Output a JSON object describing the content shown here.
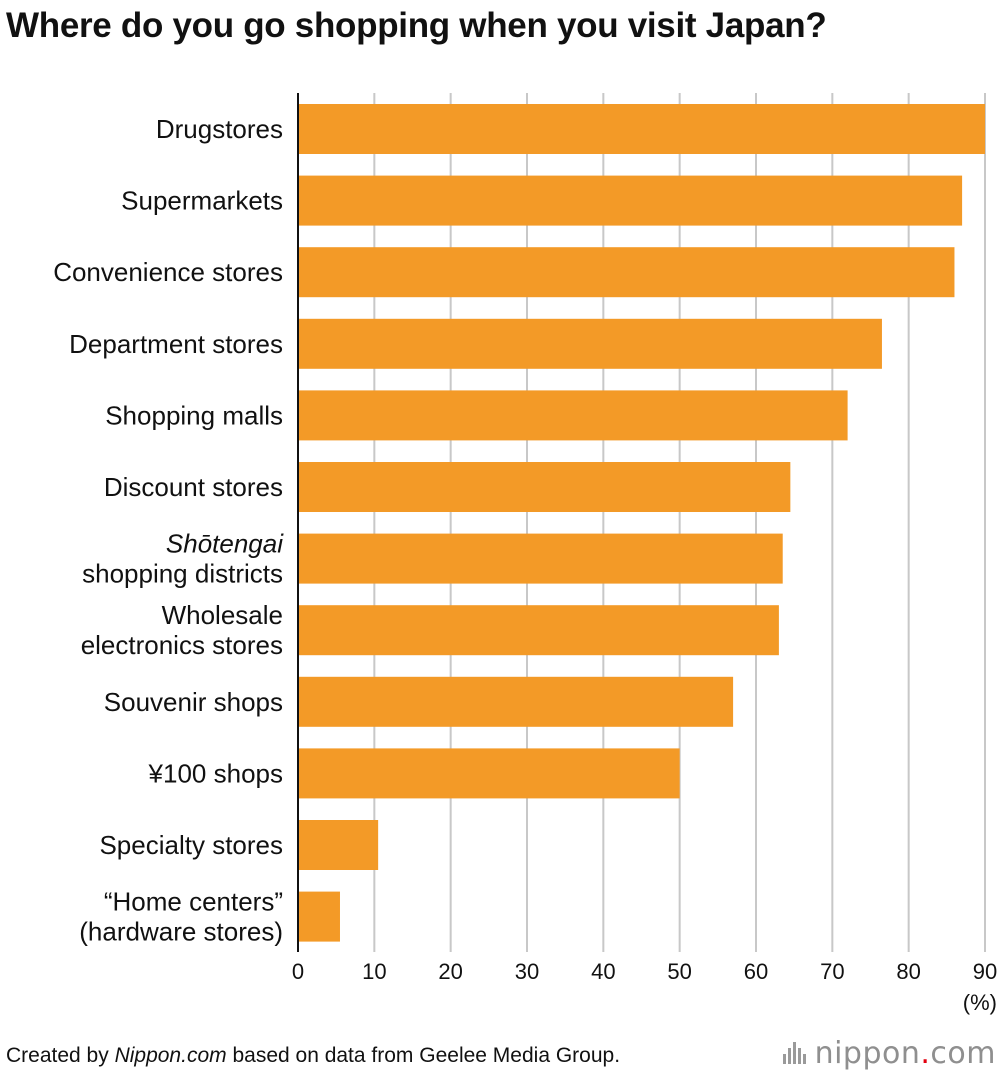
{
  "title": "Where do you go shopping when you visit Japan?",
  "footer": {
    "prefix": "Created by ",
    "source_name": "Nippon.com",
    "suffix": " based on data from Geelee Media Group."
  },
  "brand": {
    "name": "nippon",
    "dot": ".",
    "tld": "com",
    "icon": "nippon-logo-icon"
  },
  "colors": {
    "bar": "#F39A27",
    "grid": "#c8c8c8",
    "axis": "#111111",
    "text": "#111111"
  },
  "chart_data": {
    "type": "bar",
    "orientation": "horizontal",
    "title": "Where do you go shopping when you visit Japan?",
    "categories": [
      [
        "Drugstores"
      ],
      [
        "Supermarkets"
      ],
      [
        "Convenience stores"
      ],
      [
        "Department stores"
      ],
      [
        "Shopping malls"
      ],
      [
        "Discount stores"
      ],
      [
        "Shōtengai",
        "shopping districts"
      ],
      [
        "Wholesale",
        "electronics stores"
      ],
      [
        "Souvenir shops"
      ],
      [
        "¥100 shops"
      ],
      [
        "Specialty stores"
      ],
      [
        "“Home centers”",
        "(hardware stores)"
      ]
    ],
    "italic_first_line": [
      false,
      false,
      false,
      false,
      false,
      false,
      true,
      false,
      false,
      false,
      false,
      false
    ],
    "values": [
      90,
      87,
      86,
      76.5,
      72,
      64.5,
      63.5,
      63,
      57,
      50,
      10.5,
      5.5
    ],
    "xlim": [
      0,
      90
    ],
    "xticks": [
      0,
      10,
      20,
      30,
      40,
      50,
      60,
      70,
      80,
      90
    ],
    "xlabel": "(%)",
    "ylabel": "",
    "grid": true
  }
}
